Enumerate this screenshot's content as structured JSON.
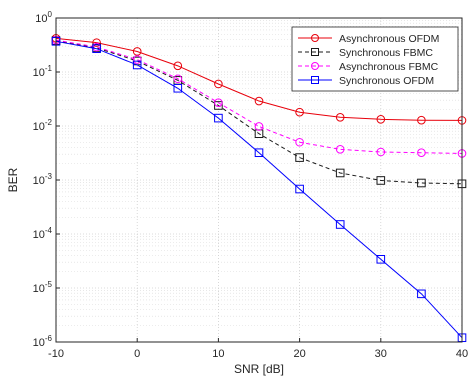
{
  "chart_data": {
    "type": "line",
    "xlabel": "SNR [dB]",
    "ylabel": "BER",
    "xlim": [
      -10,
      40
    ],
    "ylim": [
      1e-06,
      1
    ],
    "yscale": "log",
    "grid": true,
    "minor_grid": true,
    "legend_position": "top-right",
    "x_ticks": [
      "-10",
      "0",
      "10",
      "20",
      "30",
      "40"
    ],
    "y_ticks": [
      {
        "base": "10",
        "exp": "0"
      },
      {
        "base": "10",
        "exp": "-1"
      },
      {
        "base": "10",
        "exp": "-2"
      },
      {
        "base": "10",
        "exp": "-3"
      },
      {
        "base": "10",
        "exp": "-4"
      },
      {
        "base": "10",
        "exp": "-5"
      },
      {
        "base": "10",
        "exp": "-6"
      }
    ],
    "x": [
      -10,
      -5,
      0,
      5,
      10,
      15,
      20,
      25,
      30,
      35,
      40
    ],
    "series": [
      {
        "name": "Asynchronous OFDM",
        "color": "#e8000b",
        "dash": "solid",
        "marker": "circle",
        "values": [
          0.42,
          0.35,
          0.24,
          0.13,
          0.06,
          0.029,
          0.018,
          0.0145,
          0.0133,
          0.0128,
          0.0127
        ]
      },
      {
        "name": "Synchronous FBMC",
        "color": "#1a1a1a",
        "dash": "dashed",
        "marker": "square",
        "values": [
          0.38,
          0.28,
          0.16,
          0.07,
          0.024,
          0.0072,
          0.0026,
          0.00135,
          0.00098,
          0.00088,
          0.00085
        ]
      },
      {
        "name": "Asynchronous FBMC",
        "color": "#ff00ff",
        "dash": "dashed",
        "marker": "circle",
        "values": [
          0.39,
          0.29,
          0.17,
          0.075,
          0.027,
          0.0098,
          0.005,
          0.0037,
          0.0033,
          0.0032,
          0.0031
        ]
      },
      {
        "name": "Synchronous OFDM",
        "color": "#0000ff",
        "dash": "solid",
        "marker": "square",
        "values": [
          0.37,
          0.27,
          0.135,
          0.05,
          0.014,
          0.0032,
          0.00068,
          0.00015,
          3.4e-05,
          7.8e-06,
          1.2e-06
        ]
      }
    ]
  }
}
